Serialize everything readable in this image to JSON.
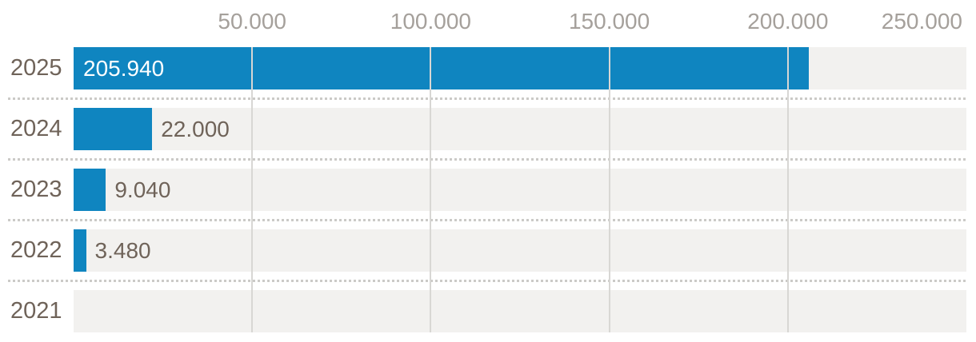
{
  "chart_data": {
    "type": "bar",
    "orientation": "horizontal",
    "categories": [
      "2025",
      "2024",
      "2023",
      "2022",
      "2021"
    ],
    "values": [
      205940,
      22000,
      9040,
      3480,
      0
    ],
    "value_labels": [
      "205.940",
      "22.000",
      "9.040",
      "3.480",
      ""
    ],
    "xlim": [
      0,
      250000
    ],
    "x_ticks": [
      50000,
      100000,
      150000,
      200000,
      250000
    ],
    "x_tick_labels": [
      "50.000",
      "100.000",
      "150.000",
      "200.000",
      "250.000"
    ],
    "grid": true,
    "legend": "none",
    "colors": {
      "bar": "#0f85c0",
      "bar_label_inside": "#ffffff",
      "bar_label_outside": "#6f6359",
      "category_label": "#6f6359",
      "tick_label": "#a5a09b",
      "track": "#f2f1ef",
      "gridline": "#d8d7d4",
      "separator_dots": "#cbcac7",
      "background": "#ffffff"
    }
  }
}
